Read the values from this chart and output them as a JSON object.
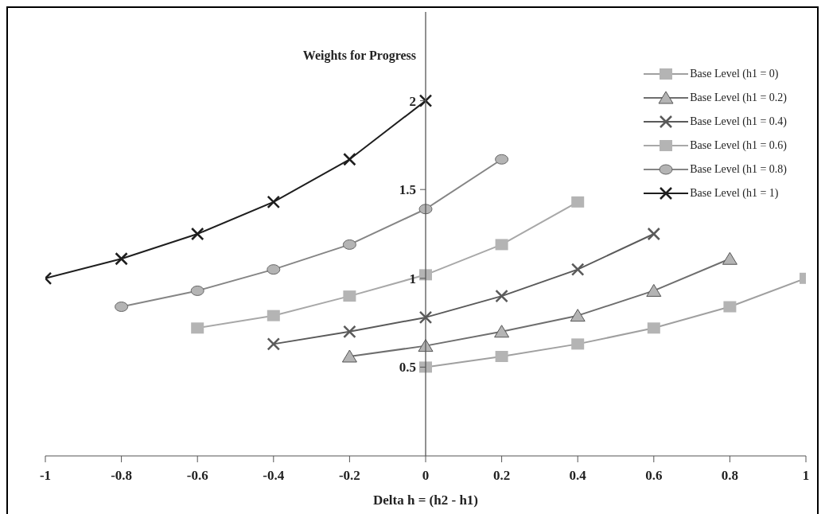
{
  "chart_data": {
    "type": "line",
    "ylabel": "Weights for Progress",
    "xlabel": "Delta h = (h2 - h1)",
    "xlim": [
      -1,
      1
    ],
    "xticks": [
      -1,
      -0.8,
      -0.6,
      -0.4,
      -0.2,
      0,
      0.2,
      0.4,
      0.6,
      0.8,
      1
    ],
    "ylim": [
      0,
      2.5
    ],
    "yticks": [
      0.5,
      1,
      1.5,
      2
    ],
    "grid": false,
    "legend": "top right",
    "series": [
      {
        "name": "Base Level (h1 = 0)",
        "color": "#a0a0a0",
        "marker": "square",
        "x": [
          0,
          0.2,
          0.4,
          0.6,
          0.8,
          1
        ],
        "values": [
          0.5,
          0.56,
          0.63,
          0.72,
          0.84,
          1.0
        ]
      },
      {
        "name": "Base Level (h1 = 0.2)",
        "color": "#6e6e6e",
        "marker": "triangle",
        "x": [
          -0.2,
          0,
          0.2,
          0.4,
          0.6,
          0.8
        ],
        "values": [
          0.56,
          0.62,
          0.7,
          0.79,
          0.93,
          1.11
        ]
      },
      {
        "name": "Base Level (h1 = 0.4)",
        "color": "#5a5a5a",
        "marker": "cross",
        "x": [
          -0.4,
          -0.2,
          0,
          0.2,
          0.4,
          0.6
        ],
        "values": [
          0.63,
          0.7,
          0.78,
          0.9,
          1.05,
          1.25
        ]
      },
      {
        "name": "Base Level (h1 = 0.6)",
        "color": "#a8a8a8",
        "marker": "square",
        "x": [
          -0.6,
          -0.4,
          -0.2,
          0,
          0.2,
          0.4
        ],
        "values": [
          0.72,
          0.79,
          0.9,
          1.02,
          1.19,
          1.43
        ]
      },
      {
        "name": "Base Level (h1 = 0.8)",
        "color": "#858585",
        "marker": "circle",
        "x": [
          -0.8,
          -0.6,
          -0.4,
          -0.2,
          0,
          0.2
        ],
        "values": [
          0.84,
          0.93,
          1.05,
          1.19,
          1.39,
          1.67
        ]
      },
      {
        "name": "Base Level (h1 = 1)",
        "color": "#1e1e1e",
        "marker": "cross",
        "x": [
          -1,
          -0.8,
          -0.6,
          -0.4,
          -0.2,
          0
        ],
        "values": [
          1.0,
          1.11,
          1.25,
          1.43,
          1.67,
          2.0
        ]
      }
    ]
  }
}
